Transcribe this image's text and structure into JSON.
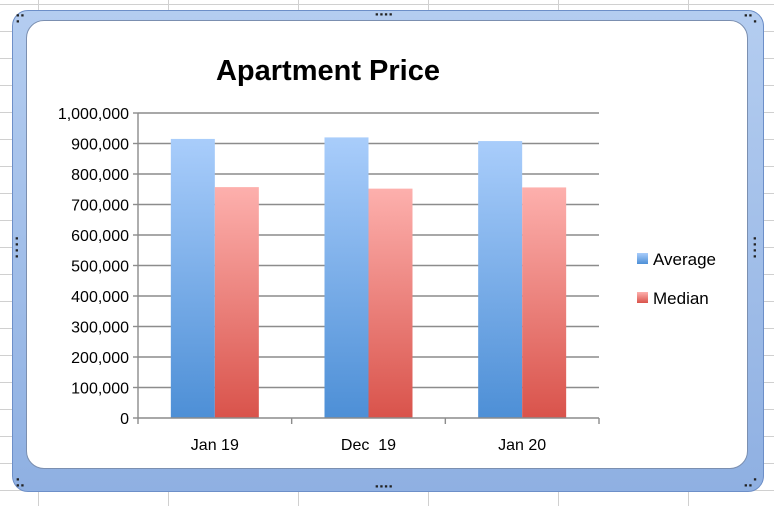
{
  "chart_data": {
    "type": "bar",
    "title": "Apartment Price",
    "categories": [
      "Jan 19",
      "Dec  19",
      "Jan 20"
    ],
    "series": [
      {
        "name": "Average",
        "values": [
          915000,
          920000,
          908000
        ]
      },
      {
        "name": "Median",
        "values": [
          757000,
          752000,
          756000
        ]
      }
    ],
    "yticks": [
      "0",
      "100,000",
      "200,000",
      "300,000",
      "400,000",
      "500,000",
      "600,000",
      "700,000",
      "800,000",
      "900,000",
      "1,000,000"
    ],
    "ylim": [
      0,
      1000000
    ],
    "grid": true,
    "legend_position": "right",
    "colors": {
      "average_top": "#a9cdfb",
      "average_bottom": "#4d8fd6",
      "median_top": "#fdb0ad",
      "median_bottom": "#d9534b",
      "gridline": "#8c8c8c",
      "frame": "#9dbbe8"
    }
  }
}
